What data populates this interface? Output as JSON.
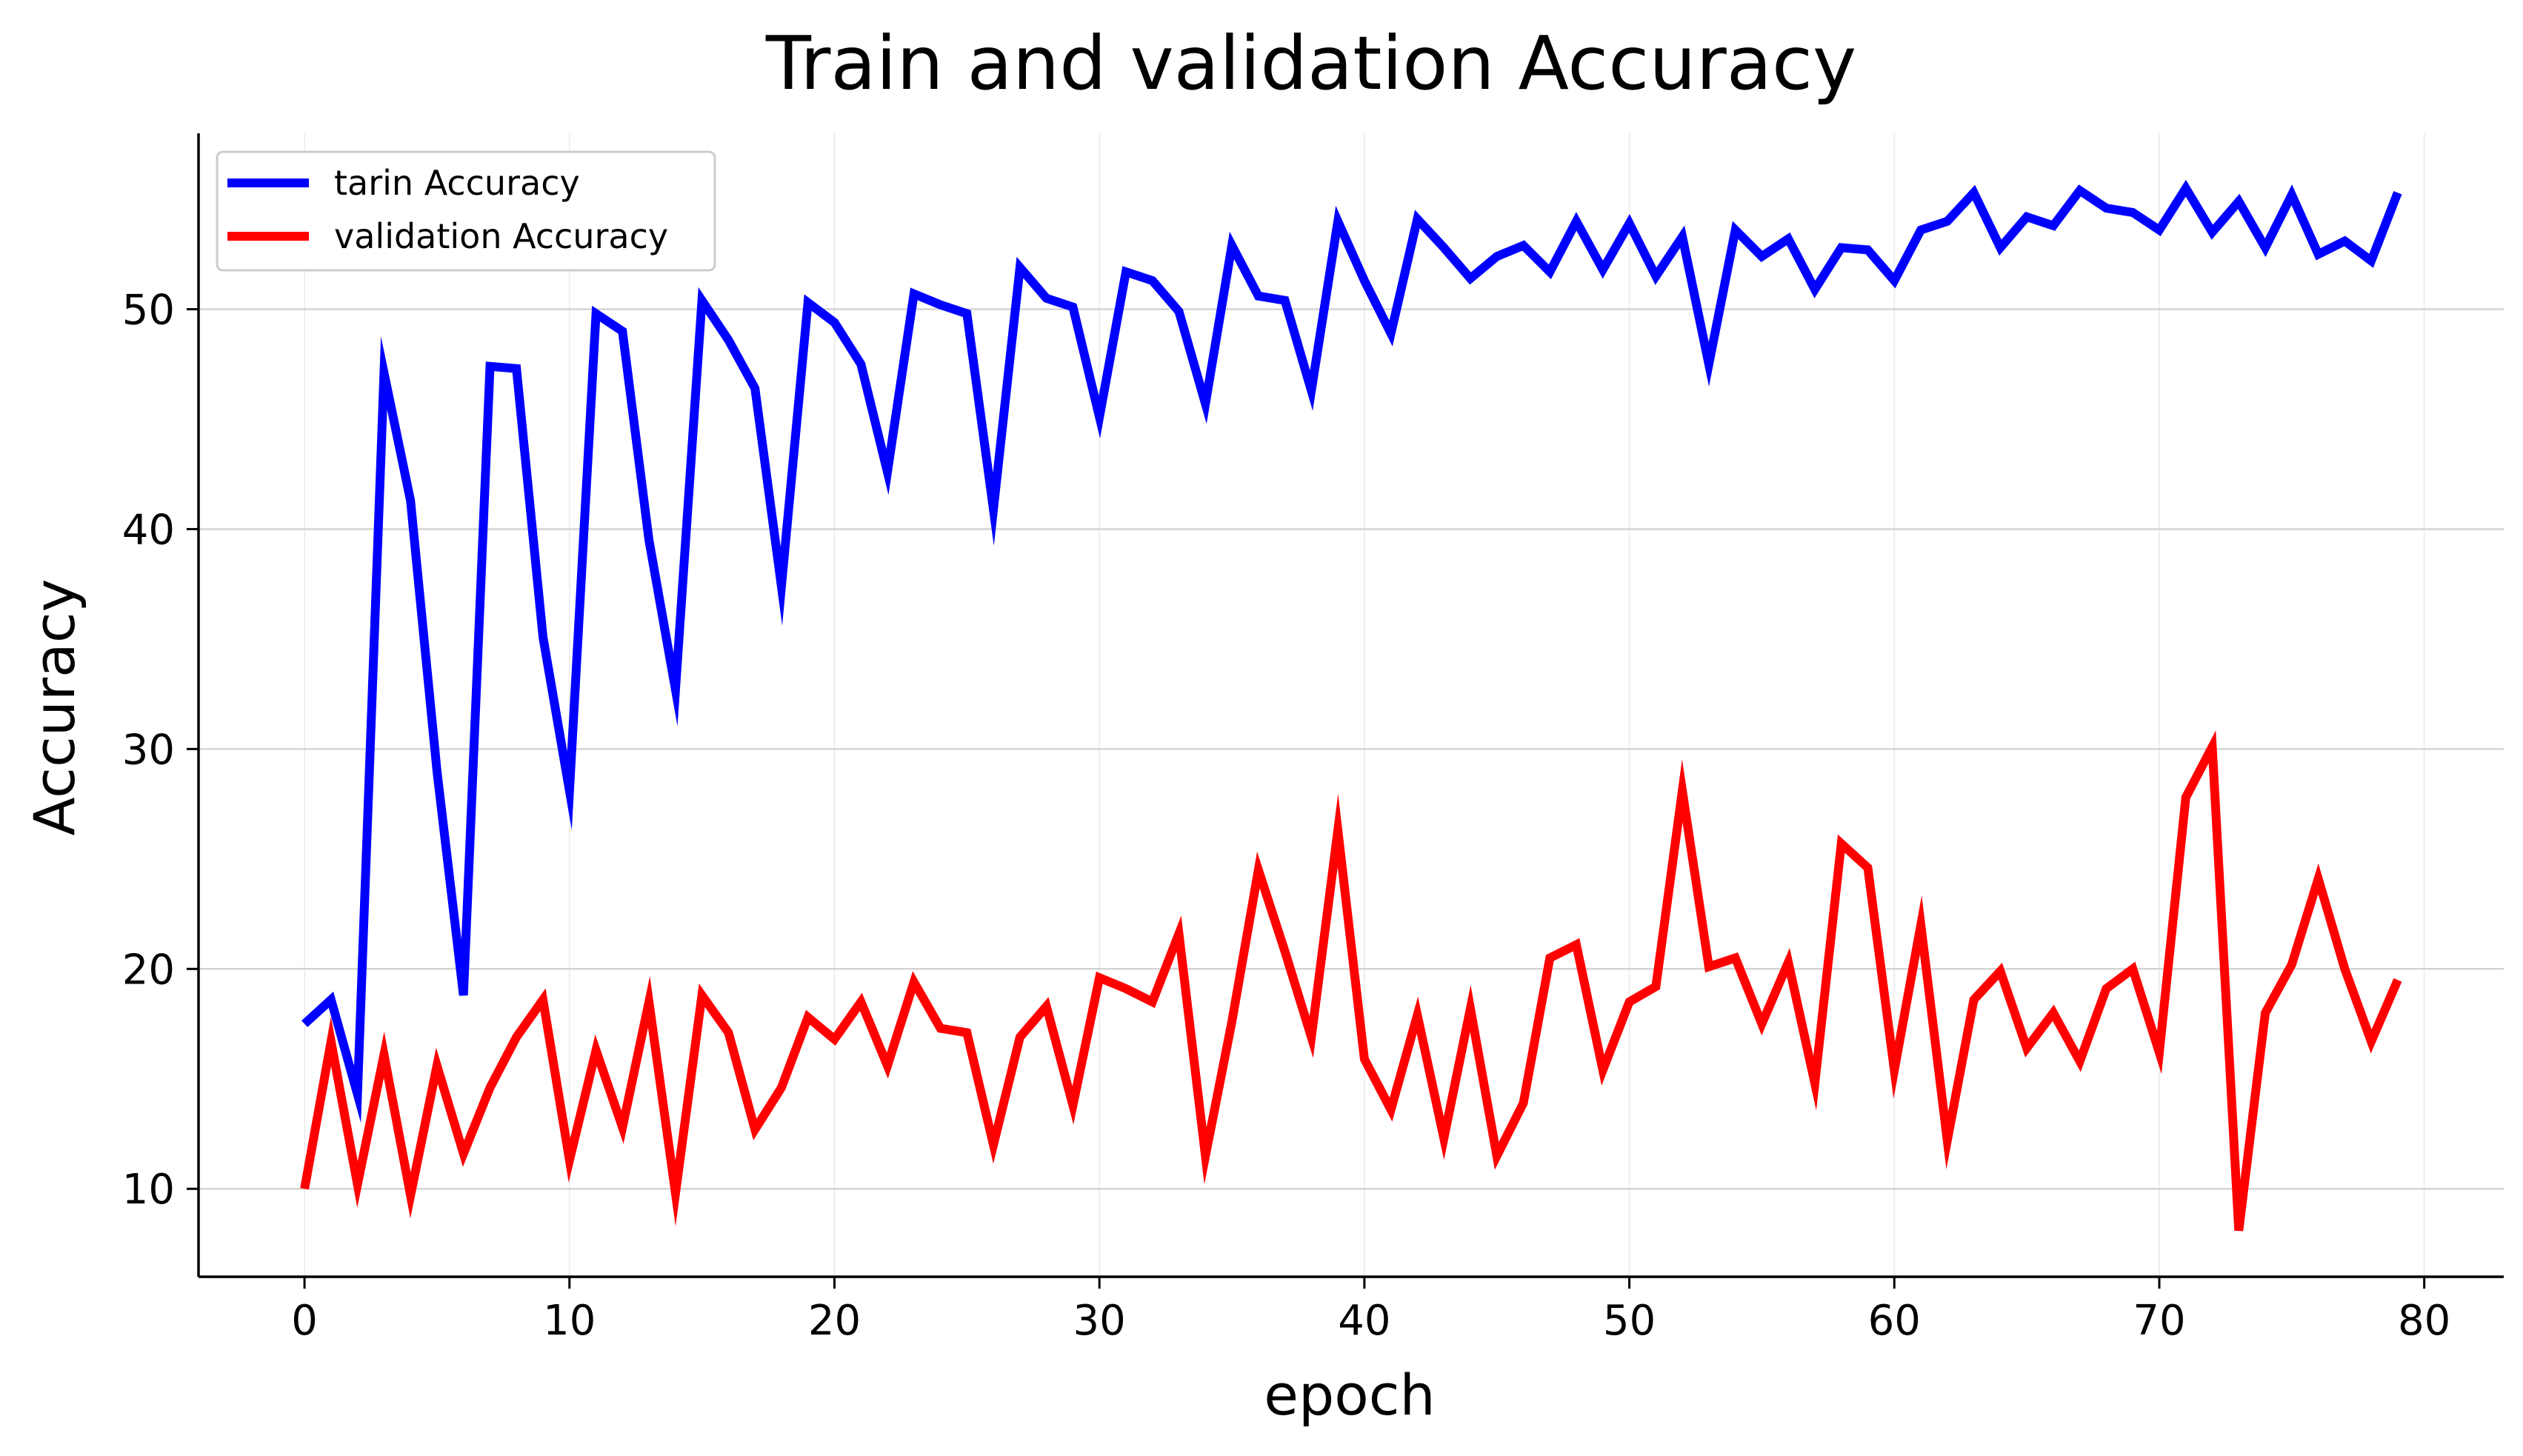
{
  "chart_data": {
    "type": "line",
    "title": "Train and validation Accuracy",
    "xlabel": "epoch",
    "ylabel": "Accuracy",
    "xlim": [
      -4,
      83
    ],
    "ylim": [
      6,
      58
    ],
    "xticks": [
      0,
      10,
      20,
      30,
      40,
      50,
      60,
      70,
      80
    ],
    "yticks": [
      10,
      20,
      30,
      40,
      50
    ],
    "grid": true,
    "legend_position": "upper-left",
    "series": [
      {
        "name": "tarin Accuracy",
        "color": "#0000ff",
        "values": [
          17.5,
          18.6,
          14.3,
          47.1,
          41.3,
          29.0,
          18.8,
          47.4,
          47.3,
          35.1,
          28.1,
          49.8,
          49.0,
          39.5,
          32.7,
          50.4,
          48.6,
          46.4,
          37.4,
          50.3,
          49.4,
          47.5,
          42.6,
          50.7,
          50.2,
          49.8,
          40.9,
          51.9,
          50.5,
          50.1,
          45.1,
          51.7,
          51.3,
          49.9,
          45.7,
          52.9,
          50.6,
          50.4,
          46.3,
          54.0,
          51.3,
          48.9,
          54.1,
          52.8,
          51.4,
          52.4,
          52.9,
          51.7,
          54.0,
          51.8,
          53.9,
          51.5,
          53.3,
          47.5,
          53.6,
          52.4,
          53.2,
          50.9,
          52.8,
          52.7,
          51.3,
          53.6,
          54.0,
          55.3,
          52.8,
          54.2,
          53.8,
          55.4,
          54.6,
          54.4,
          53.6,
          55.5,
          53.5,
          54.9,
          52.8,
          55.2,
          52.5,
          53.1,
          52.2,
          55.3
        ]
      },
      {
        "name": "validation Accuracy",
        "color": "#ff0000",
        "values": [
          10.0,
          16.7,
          10.2,
          16.1,
          9.7,
          15.6,
          11.6,
          14.6,
          16.9,
          18.6,
          11.3,
          16.3,
          12.8,
          18.5,
          9.8,
          18.8,
          17.1,
          12.7,
          14.6,
          17.8,
          16.8,
          18.5,
          15.6,
          19.4,
          17.3,
          17.1,
          12.0,
          16.9,
          18.3,
          13.8,
          19.6,
          19.1,
          18.5,
          21.6,
          11.5,
          17.6,
          24.5,
          20.8,
          16.9,
          26.3,
          15.9,
          13.6,
          17.9,
          12.3,
          18.2,
          11.5,
          13.9,
          20.5,
          21.1,
          15.4,
          18.5,
          19.2,
          28.1,
          20.1,
          20.5,
          17.5,
          20.3,
          14.8,
          25.7,
          24.6,
          15.4,
          22.0,
          12.2,
          18.6,
          19.9,
          16.4,
          18.0,
          15.8,
          19.1,
          20.0,
          16.2,
          27.8,
          30.1,
          8.1,
          18.0,
          20.2,
          24.1,
          20.0,
          16.7,
          19.5
        ]
      }
    ]
  }
}
